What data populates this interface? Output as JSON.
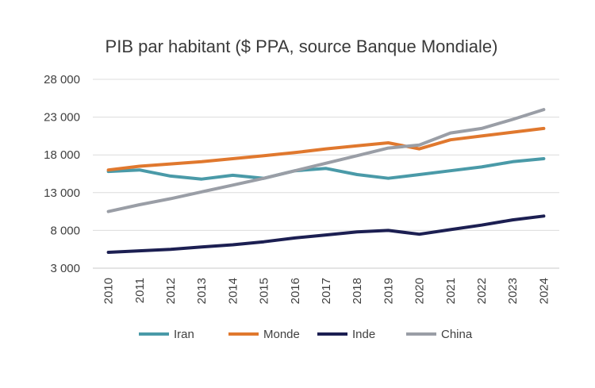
{
  "chart_data": {
    "type": "line",
    "title": "PIB par habitant ($ PPA, source Banque Mondiale)",
    "xlabel": "",
    "ylabel": "",
    "categories": [
      "2010",
      "2011",
      "2012",
      "2013",
      "2014",
      "2015",
      "2016",
      "2017",
      "2018",
      "2019",
      "2020",
      "2021",
      "2022",
      "2023",
      "2024"
    ],
    "y_ticks": [
      3000,
      8000,
      13000,
      18000,
      23000,
      28000
    ],
    "y_tick_labels": [
      "3 000",
      "8 000",
      "13 000",
      "18 000",
      "23 000",
      "28 000"
    ],
    "ylim": [
      3000,
      28000
    ],
    "grid": true,
    "legend_position": "bottom",
    "series": [
      {
        "name": "Iran",
        "color": "#4a9aa8",
        "values": [
          15800,
          16000,
          15200,
          14800,
          15300,
          14900,
          15900,
          16200,
          15400,
          14900,
          15400,
          15900,
          16400,
          17100,
          17500
        ]
      },
      {
        "name": "Monde",
        "color": "#e0782e",
        "values": [
          16000,
          16500,
          16800,
          17100,
          17500,
          17900,
          18300,
          18800,
          19200,
          19600,
          18800,
          20000,
          20500,
          21000,
          21500
        ]
      },
      {
        "name": "Inde",
        "color": "#1c1f52",
        "values": [
          5100,
          5300,
          5500,
          5800,
          6100,
          6500,
          7000,
          7400,
          7800,
          8000,
          7500,
          8100,
          8700,
          9400,
          9900
        ]
      },
      {
        "name": "China",
        "color": "#9a9ea6",
        "values": [
          10500,
          11400,
          12200,
          13100,
          14000,
          14900,
          15900,
          16900,
          17900,
          18900,
          19300,
          20900,
          21500,
          22700,
          24000
        ]
      }
    ]
  }
}
